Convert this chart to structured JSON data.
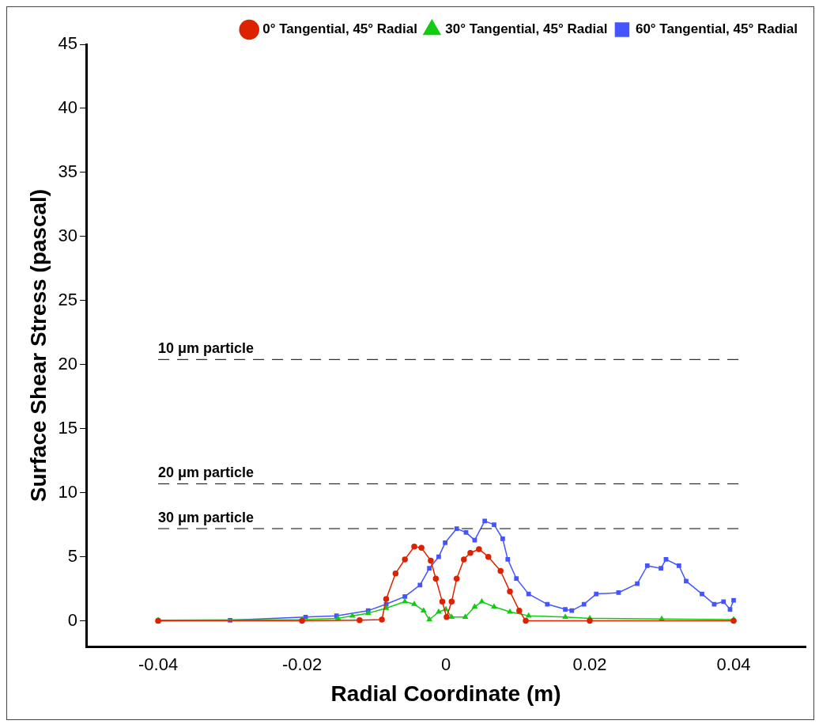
{
  "chart_data": {
    "type": "line",
    "xlabel": "Radial Coordinate (m)",
    "ylabel": "Surface Shear Stress (pascal)",
    "xlim": [
      -0.05,
      0.05
    ],
    "xticks": [
      -0.04,
      -0.02,
      0,
      0.02,
      0.04
    ],
    "ylim": [
      -2,
      45
    ],
    "yticks": [
      0,
      5,
      10,
      15,
      20,
      25,
      30,
      35,
      40,
      45
    ],
    "grid": false,
    "legend": "top right",
    "line_style": "solid",
    "series": [
      {
        "name": "0° Tangential, 45° Radial",
        "color": "#dd2200",
        "marker": "circle",
        "x": [
          -0.04,
          -0.02,
          -0.012,
          -0.0089,
          -0.0083,
          -0.007,
          -0.0057,
          -0.0044,
          -0.0034,
          -0.0021,
          -0.0014,
          -0.0005,
          0.0001,
          0.0008,
          0.0015,
          0.0025,
          0.0034,
          0.0046,
          0.0059,
          0.0076,
          0.0089,
          0.0102,
          0.0111,
          0.02,
          0.04
        ],
        "values": [
          0,
          0,
          0.05,
          0.1,
          1.7,
          3.7,
          4.8,
          5.8,
          5.7,
          4.7,
          3.3,
          1.5,
          0.3,
          1.5,
          3.3,
          4.8,
          5.3,
          5.6,
          5,
          3.9,
          2.3,
          0.8,
          0,
          0,
          0
        ]
      },
      {
        "name": "30° Tangential, 45° Radial",
        "color": "#11cc11",
        "marker": "triangle",
        "x": [
          -0.04,
          -0.02,
          -0.015,
          -0.013,
          -0.0108,
          -0.0083,
          -0.0057,
          -0.0044,
          -0.0031,
          -0.0023,
          -0.001,
          0,
          0.0008,
          0.0027,
          0.004,
          0.005,
          0.0067,
          0.0089,
          0.0115,
          0.0166,
          0.02,
          0.03,
          0.04
        ],
        "values": [
          0.05,
          0.1,
          0.2,
          0.4,
          0.6,
          1,
          1.5,
          1.3,
          0.8,
          0.1,
          0.7,
          0.9,
          0.3,
          0.3,
          1.1,
          1.5,
          1.1,
          0.7,
          0.4,
          0.3,
          0.2,
          0.15,
          0.1
        ]
      },
      {
        "name": "60° Tangential, 45° Radial",
        "color": "#4455ff",
        "marker": "square",
        "x": [
          -0.04,
          -0.03,
          -0.0195,
          -0.0152,
          -0.0108,
          -0.0083,
          -0.0057,
          -0.0036,
          -0.0023,
          -0.001,
          -0.0001,
          0.0015,
          0.0028,
          0.004,
          0.0054,
          0.0067,
          0.0079,
          0.0086,
          0.0098,
          0.0115,
          0.0141,
          0.0166,
          0.0175,
          0.0192,
          0.0209,
          0.024,
          0.0266,
          0.028,
          0.0299,
          0.0306,
          0.0324,
          0.0334,
          0.0356,
          0.0373,
          0.0386,
          0.0395,
          0.04
        ],
        "values": [
          0,
          0.05,
          0.3,
          0.4,
          0.8,
          1.3,
          1.9,
          2.8,
          4.1,
          5,
          6.1,
          7.2,
          6.9,
          6.3,
          7.8,
          7.5,
          6.4,
          4.8,
          3.3,
          2.1,
          1.3,
          0.9,
          0.8,
          1.3,
          2.1,
          2.2,
          2.9,
          4.3,
          4.1,
          4.8,
          4.3,
          3.1,
          2.1,
          1.3,
          1.5,
          0.9,
          1.6
        ]
      }
    ],
    "ref_lines": [
      {
        "axis": "y",
        "value": 20.4,
        "label": "10 μm particle",
        "color": "#000000",
        "line_style": "dashed"
      },
      {
        "axis": "y",
        "value": 10.7,
        "label": "20 μm particle",
        "color": "#000000",
        "line_style": "dashed"
      },
      {
        "axis": "y",
        "value": 7.2,
        "label": "30 μm particle",
        "color": "#000000",
        "line_style": "dashed"
      }
    ]
  }
}
